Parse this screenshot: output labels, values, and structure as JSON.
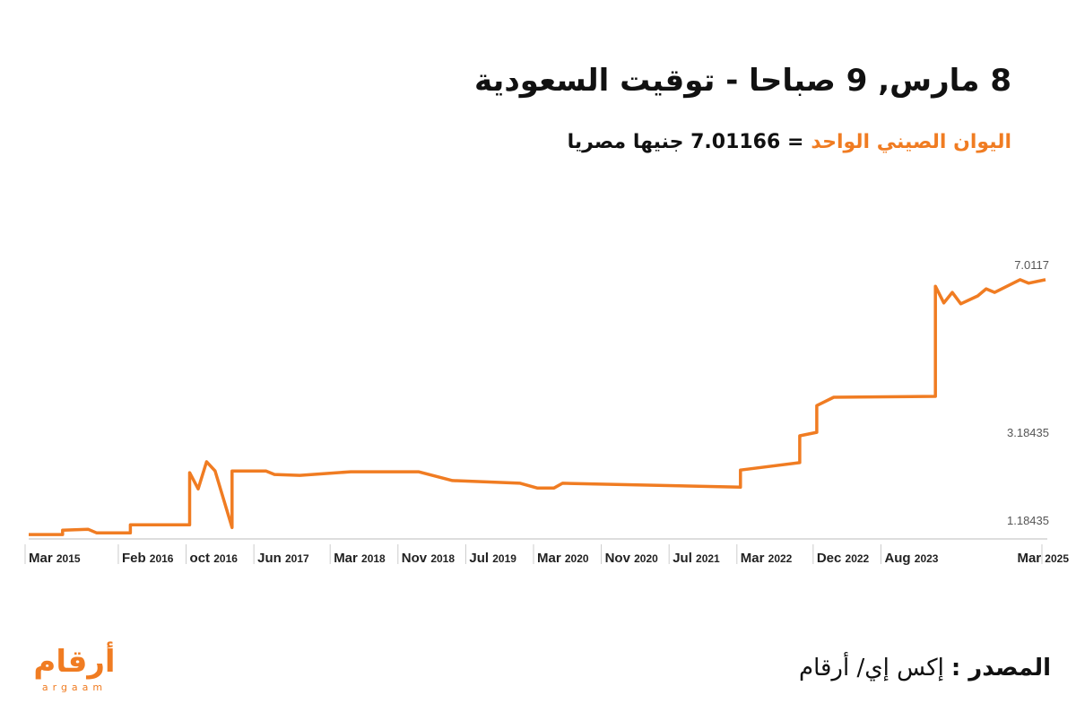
{
  "chart_data": {
    "type": "line",
    "title": "8 مارس, 9 صباحا - توقيت السعودية",
    "subtitle_highlight": "اليوان الصيني الواحد",
    "subtitle": "= 7.01166 جنيها مصريا",
    "color": "#f07c22",
    "x": [
      "2015-03",
      "2015-07",
      "2015-07",
      "2015-10",
      "2015-11",
      "2016-03",
      "2016-03",
      "2016-10",
      "2016-10",
      "2016-11",
      "2016-12",
      "2017-01",
      "2017-03",
      "2017-03",
      "2017-07",
      "2017-08",
      "2017-11",
      "2018-05",
      "2019-01",
      "2019-05",
      "2020-01",
      "2020-03",
      "2020-05",
      "2020-06",
      "2022-03",
      "2022-03",
      "2022-10",
      "2022-10",
      "2022-12",
      "2022-12",
      "2023-02",
      "2024-02",
      "2024-02",
      "2024-03",
      "2024-04",
      "2024-05",
      "2024-07",
      "2024-08",
      "2024-09",
      "2024-12",
      "2025-01",
      "2025-03"
    ],
    "values": [
      1.2,
      1.2,
      1.3,
      1.32,
      1.24,
      1.24,
      1.42,
      1.42,
      2.61,
      2.24,
      2.86,
      2.65,
      1.36,
      2.65,
      2.65,
      2.57,
      2.55,
      2.63,
      2.63,
      2.43,
      2.37,
      2.26,
      2.26,
      2.37,
      2.28,
      2.67,
      2.84,
      3.45,
      3.53,
      4.14,
      4.33,
      4.35,
      6.86,
      6.48,
      6.72,
      6.46,
      6.64,
      6.8,
      6.72,
      7.01,
      6.93,
      7.01
    ],
    "xlim": [
      "2015-03",
      "2025-03"
    ],
    "xticks": [
      {
        "value": "2015-03",
        "label": "Mar 2015"
      },
      {
        "value": "2016-02",
        "label": "Feb 2016"
      },
      {
        "value": "2016-10",
        "label": "oct 2016"
      },
      {
        "value": "2017-06",
        "label": "Jun 2017"
      },
      {
        "value": "2018-03",
        "label": "Mar 2018"
      },
      {
        "value": "2018-11",
        "label": "Nov 2018"
      },
      {
        "value": "2019-07",
        "label": "Jul 2019"
      },
      {
        "value": "2020-03",
        "label": "Mar 2020"
      },
      {
        "value": "2020-11",
        "label": "Nov 2020"
      },
      {
        "value": "2021-07",
        "label": "Jul 2021"
      },
      {
        "value": "2022-03",
        "label": "Mar 2022"
      },
      {
        "value": "2022-12",
        "label": "Dec 2022"
      },
      {
        "value": "2023-08",
        "label": "Aug 2023"
      },
      {
        "value": "2025-03",
        "label": "Mar 2025"
      }
    ],
    "ylim": [
      1.1,
      7.6
    ],
    "yticks": [
      1.18435,
      3.18435,
      7.0117
    ],
    "grid": false,
    "source_label": "المصدر :",
    "source": "إكس إي/ أرقام",
    "logo": "أرقام",
    "logo_sub": "argaam"
  }
}
